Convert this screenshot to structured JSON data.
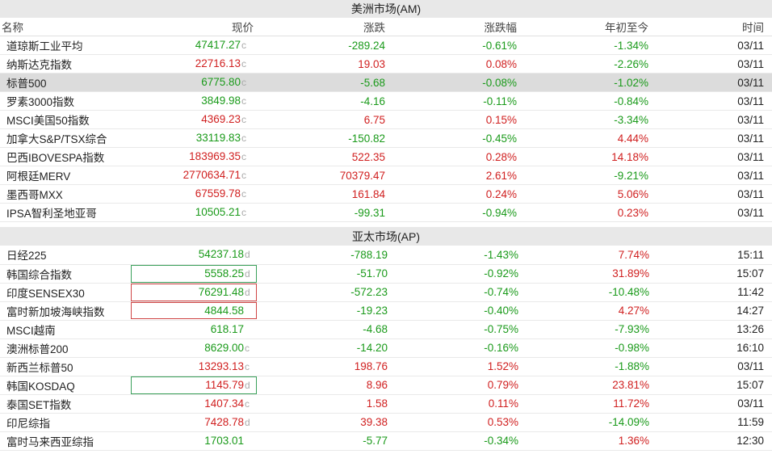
{
  "am": {
    "title": "美洲市场(AM)",
    "headers": {
      "name": "名称",
      "price": "现价",
      "chg": "涨跌",
      "pct": "涨跌幅",
      "ytd": "年初至今",
      "time": "时间"
    },
    "rows": [
      {
        "name": "道琼斯工业平均",
        "price": "47417.27",
        "flag": "c",
        "chg": "-289.24",
        "pct": "-0.61%",
        "ytd": "-1.34%",
        "time": "03/11",
        "dir": "down",
        "ytd_dir": "down"
      },
      {
        "name": "纳斯达克指数",
        "price": "22716.13",
        "flag": "c",
        "chg": "19.03",
        "pct": "0.08%",
        "ytd": "-2.26%",
        "time": "03/11",
        "dir": "up",
        "ytd_dir": "down"
      },
      {
        "name": "标普500",
        "price": "6775.80",
        "flag": "c",
        "chg": "-5.68",
        "pct": "-0.08%",
        "ytd": "-1.02%",
        "time": "03/11",
        "dir": "down",
        "ytd_dir": "down",
        "highlight": true
      },
      {
        "name": "罗素3000指数",
        "price": "3849.98",
        "flag": "c",
        "chg": "-4.16",
        "pct": "-0.11%",
        "ytd": "-0.84%",
        "time": "03/11",
        "dir": "down",
        "ytd_dir": "down"
      },
      {
        "name": "MSCI美国50指数",
        "price": "4369.23",
        "flag": "c",
        "chg": "6.75",
        "pct": "0.15%",
        "ytd": "-3.34%",
        "time": "03/11",
        "dir": "up",
        "ytd_dir": "down"
      },
      {
        "name": "加拿大S&P/TSX综合",
        "price": "33119.83",
        "flag": "c",
        "chg": "-150.82",
        "pct": "-0.45%",
        "ytd": "4.44%",
        "time": "03/11",
        "dir": "down",
        "ytd_dir": "up"
      },
      {
        "name": "巴西IBOVESPA指数",
        "price": "183969.35",
        "flag": "c",
        "chg": "522.35",
        "pct": "0.28%",
        "ytd": "14.18%",
        "time": "03/11",
        "dir": "up",
        "ytd_dir": "up"
      },
      {
        "name": "阿根廷MERV",
        "price": "2770634.71",
        "flag": "c",
        "chg": "70379.47",
        "pct": "2.61%",
        "ytd": "-9.21%",
        "time": "03/11",
        "dir": "up",
        "ytd_dir": "down"
      },
      {
        "name": "墨西哥MXX",
        "price": "67559.78",
        "flag": "c",
        "chg": "161.84",
        "pct": "0.24%",
        "ytd": "5.06%",
        "time": "03/11",
        "dir": "up",
        "ytd_dir": "up"
      },
      {
        "name": "IPSA智利圣地亚哥",
        "price": "10505.21",
        "flag": "c",
        "chg": "-99.31",
        "pct": "-0.94%",
        "ytd": "0.23%",
        "time": "03/11",
        "dir": "down",
        "ytd_dir": "up"
      }
    ]
  },
  "ap": {
    "title": "亚太市场(AP)",
    "rows": [
      {
        "name": "日经225",
        "price": "54237.18",
        "flag": "d",
        "chg": "-788.19",
        "pct": "-1.43%",
        "ytd": "7.74%",
        "time": "15:11",
        "dir": "down",
        "ytd_dir": "up",
        "box": ""
      },
      {
        "name": "韩国综合指数",
        "price": "5558.25",
        "flag": "d",
        "chg": "-51.70",
        "pct": "-0.92%",
        "ytd": "31.89%",
        "time": "15:07",
        "dir": "down",
        "ytd_dir": "up",
        "box": "green"
      },
      {
        "name": "印度SENSEX30",
        "price": "76291.48",
        "flag": "d",
        "chg": "-572.23",
        "pct": "-0.74%",
        "ytd": "-10.48%",
        "time": "11:42",
        "dir": "down",
        "ytd_dir": "down",
        "box": "red"
      },
      {
        "name": "富时新加坡海峡指数",
        "price": "4844.58",
        "flag": "",
        "chg": "-19.23",
        "pct": "-0.40%",
        "ytd": "4.27%",
        "time": "14:27",
        "dir": "down",
        "ytd_dir": "up",
        "box": "red"
      },
      {
        "name": "MSCI越南",
        "price": "618.17",
        "flag": "",
        "chg": "-4.68",
        "pct": "-0.75%",
        "ytd": "-7.93%",
        "time": "13:26",
        "dir": "down",
        "ytd_dir": "down",
        "box": ""
      },
      {
        "name": "澳洲标普200",
        "price": "8629.00",
        "flag": "c",
        "chg": "-14.20",
        "pct": "-0.16%",
        "ytd": "-0.98%",
        "time": "16:10",
        "dir": "down",
        "ytd_dir": "down",
        "box": ""
      },
      {
        "name": "新西兰标普50",
        "price": "13293.13",
        "flag": "c",
        "chg": "198.76",
        "pct": "1.52%",
        "ytd": "-1.88%",
        "time": "03/11",
        "dir": "up",
        "ytd_dir": "down",
        "box": ""
      },
      {
        "name": "韩国KOSDAQ",
        "price": "1145.79",
        "flag": "d",
        "chg": "8.96",
        "pct": "0.79%",
        "ytd": "23.81%",
        "time": "15:07",
        "dir": "up",
        "ytd_dir": "up",
        "box": "green"
      },
      {
        "name": "泰国SET指数",
        "price": "1407.34",
        "flag": "c",
        "chg": "1.58",
        "pct": "0.11%",
        "ytd": "11.72%",
        "time": "03/11",
        "dir": "up",
        "ytd_dir": "up",
        "box": ""
      },
      {
        "name": "印尼综指",
        "price": "7428.78",
        "flag": "d",
        "chg": "39.38",
        "pct": "0.53%",
        "ytd": "-14.09%",
        "time": "11:59",
        "dir": "up",
        "ytd_dir": "down",
        "box": ""
      },
      {
        "name": "富时马来西亚综指",
        "price": "1703.01",
        "flag": "",
        "chg": "-5.77",
        "pct": "-0.34%",
        "ytd": "1.36%",
        "time": "12:30",
        "dir": "down",
        "ytd_dir": "up",
        "box": ""
      }
    ]
  },
  "colors": {
    "up": "#d01f1f",
    "down": "#1a9a1a",
    "box_green": "#3aa05a",
    "box_red": "#d04545",
    "header_bg": "#e8e8e8",
    "highlight_bg": "#dcdcdc"
  }
}
